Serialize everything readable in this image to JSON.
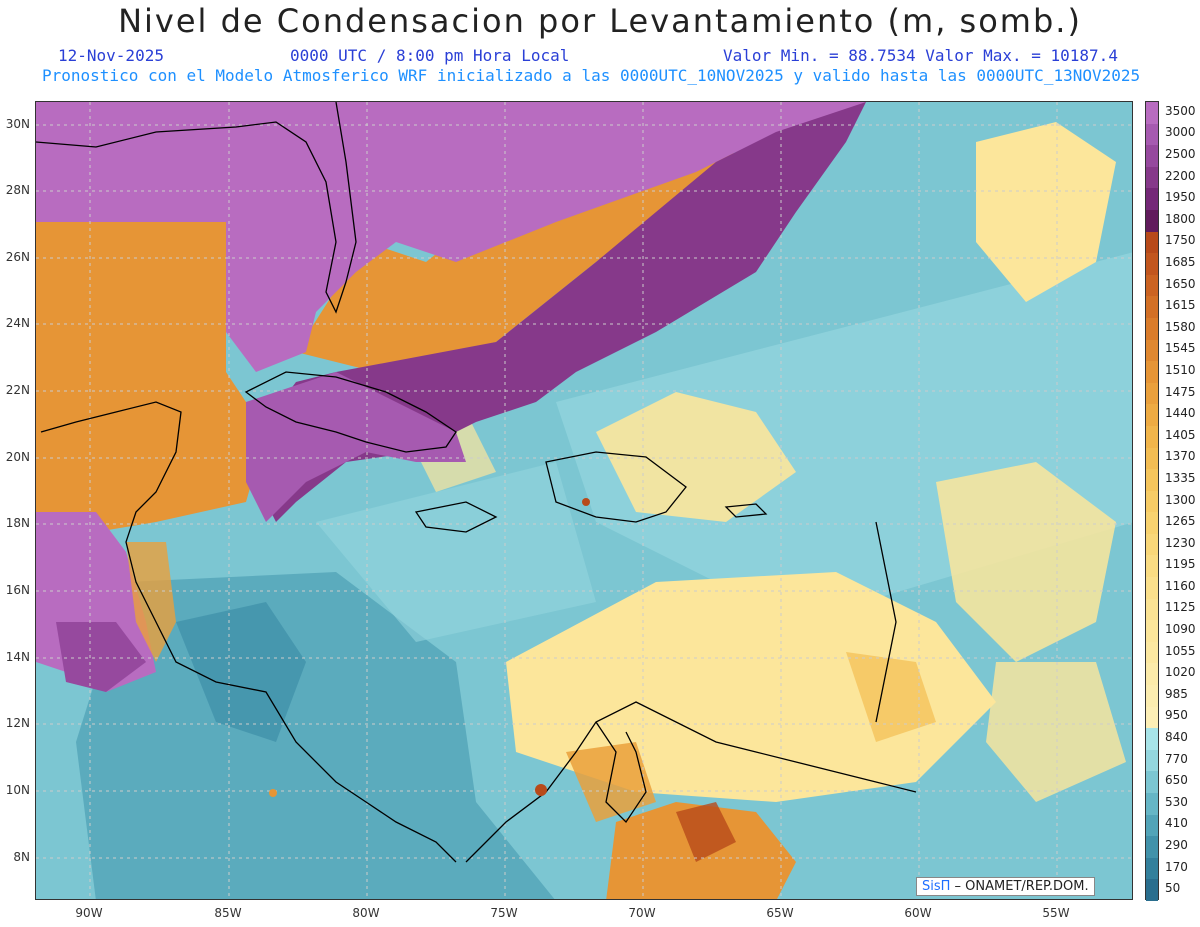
{
  "header": {
    "title": "Nivel de Condensacion por Levantamiento (m, somb.)",
    "date": "12-Nov-2025",
    "time": "0000 UTC / 8:00 pm Hora Local",
    "min_max": "Valor Min. = 88.7534  Valor Max. = 10187.4",
    "model_info": "Pronostico con el Modelo Atmosferico WRF inicializado a las 0000UTC_10NOV2025 y valido hasta las  0000UTC_13NOV2025"
  },
  "axes": {
    "lat_labels": [
      "30N",
      "28N",
      "26N",
      "24N",
      "22N",
      "20N",
      "18N",
      "16N",
      "14N",
      "12N",
      "10N",
      "8N"
    ],
    "lon_labels": [
      "90W",
      "85W",
      "80W",
      "75W",
      "70W",
      "65W",
      "60W",
      "55W"
    ]
  },
  "colorbar": {
    "levels": [
      "3500",
      "3000",
      "2500",
      "2200",
      "1950",
      "1800",
      "1750",
      "1685",
      "1650",
      "1615",
      "1580",
      "1545",
      "1510",
      "1475",
      "1440",
      "1405",
      "1370",
      "1335",
      "1300",
      "1265",
      "1230",
      "1195",
      "1160",
      "1125",
      "1090",
      "1055",
      "1020",
      "985",
      "950",
      "840",
      "770",
      "650",
      "530",
      "410",
      "290",
      "170",
      "50"
    ],
    "colors": [
      "#b86cc0",
      "#a65ab0",
      "#96499e",
      "#86398a",
      "#742877",
      "#611c5c",
      "#b84a1a",
      "#c2561e",
      "#cb6322",
      "#d37026",
      "#da7c2b",
      "#e08830",
      "#e69536",
      "#eaa03c",
      "#eeab43",
      "#f1b54b",
      "#f3bd53",
      "#f5c55c",
      "#f7cc66",
      "#f8d26f",
      "#f9d779",
      "#fadc83",
      "#fbe08c",
      "#fbe394",
      "#fce69b",
      "#fce8a1",
      "#fcebaa",
      "#fcedb0",
      "#fdefb6",
      "#a8e4e8",
      "#94d6de",
      "#7cc6d2",
      "#66b6c6",
      "#52a4b8",
      "#4192aa",
      "#33809c",
      "#2a6e8e"
    ]
  },
  "credit": {
    "brand": "SisΠ",
    "text": " –  ONAMET/REP.DOM."
  },
  "map_colors": {
    "ocean": "#7cc6d2",
    "ocean_dark": "#52a4b8",
    "ocean_light": "#a8e4e8",
    "yellow": "#fce69b",
    "orange": "#e69536",
    "purple": "#b86cc0",
    "purple_dark": "#86398a"
  }
}
